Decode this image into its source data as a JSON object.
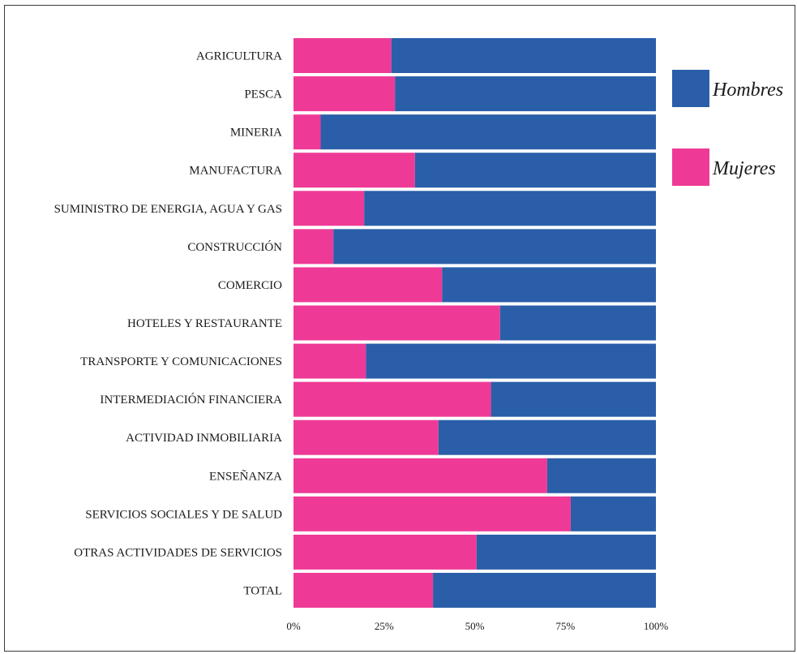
{
  "chart_data": {
    "type": "bar",
    "orientation": "horizontal",
    "stacked": true,
    "percent_stacked": true,
    "categories": [
      "AGRICULTURA",
      "PESCA",
      "MINERIA",
      "MANUFACTURA",
      "SUMINISTRO DE ENERGIA, AGUA Y GAS",
      "CONSTRUCCIÓN",
      "COMERCIO",
      "HOTELES Y RESTAURANTE",
      "TRANSPORTE Y COMUNICACIONES",
      "INTERMEDIACIÓN FINANCIERA",
      "ACTIVIDAD INMOBILIARIA",
      "ENSEÑANZA",
      "SERVICIOS SOCIALES Y DE SALUD",
      "OTRAS ACTIVIDADES DE SERVICIOS",
      "TOTAL"
    ],
    "series": [
      {
        "name": "Mujeres",
        "color": "#ee3a96",
        "values": [
          27,
          28,
          7.5,
          33.5,
          19.5,
          11,
          41,
          57,
          20,
          54.5,
          40,
          70,
          76.5,
          50.5,
          38.5
        ]
      },
      {
        "name": "Hombres",
        "color": "#2a5ea9",
        "values": [
          73,
          72,
          92.5,
          66.5,
          80.5,
          89,
          59,
          43,
          80,
          45.5,
          60,
          30,
          23.5,
          49.5,
          61.5
        ]
      }
    ],
    "x_ticks": [
      "0%",
      "25%",
      "50%",
      "75%",
      "100%"
    ],
    "xlim": [
      0,
      100
    ],
    "grid": false,
    "legend_position": "right",
    "legend": [
      {
        "label": "Hombres",
        "color": "#2a5ea9"
      },
      {
        "label": "Mujeres",
        "color": "#ee3a96"
      }
    ]
  }
}
